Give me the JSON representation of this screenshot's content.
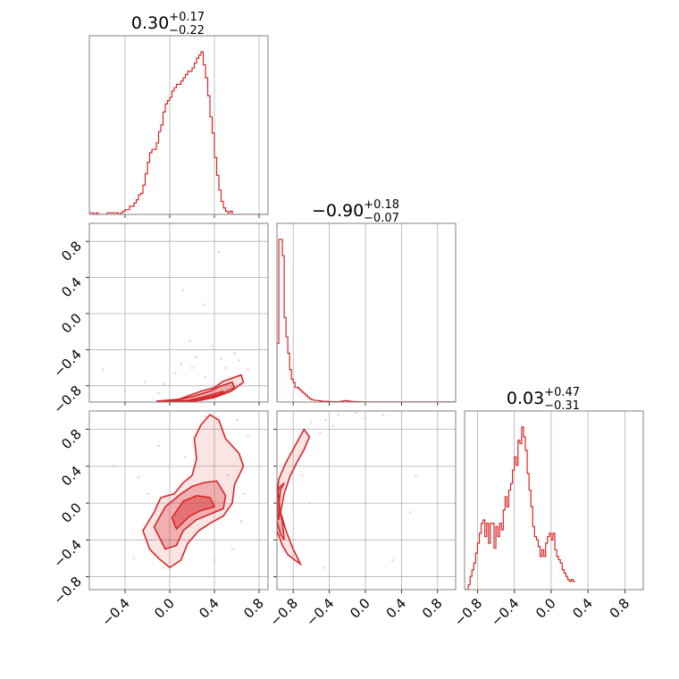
{
  "chart_data": {
    "type": "corner",
    "color": "#d62728",
    "parameters": [
      {
        "median": "0.30",
        "plus": "+0.17",
        "minus": "−0.22",
        "range": [
          -0.72,
          0.88
        ]
      },
      {
        "median": "−0.90",
        "plus": "+0.18",
        "minus": "−0.07",
        "range": [
          -0.98,
          1.0
        ]
      },
      {
        "median": "0.03",
        "plus": "+0.47",
        "minus": "−0.31",
        "range": [
          -0.94,
          1.0
        ]
      }
    ],
    "x_tick_values": [
      [
        -0.4,
        0.0,
        0.4,
        0.8
      ],
      [
        -0.8,
        -0.4,
        0.0,
        0.4,
        0.8
      ],
      [
        -0.8,
        -0.4,
        0.0,
        0.4,
        0.8
      ]
    ],
    "x_tick_labels": [
      [
        "−0.4",
        "0.0",
        "0.4",
        "0.8"
      ],
      [
        "−0.8",
        "−0.4",
        "0.0",
        "0.4",
        "0.8"
      ],
      [
        "−0.8",
        "−0.4",
        "0.0",
        "0.4",
        "0.8"
      ]
    ],
    "y_tick_values": [
      [],
      [
        -0.8,
        -0.4,
        0.0,
        0.4,
        0.8
      ],
      [
        -0.8,
        -0.4,
        0.0,
        0.4,
        0.8
      ]
    ],
    "y_tick_labels": [
      [],
      [
        "−0.8",
        "−0.4",
        "0.0",
        "0.4",
        "0.8"
      ],
      [
        "−0.8",
        "−0.4",
        "0.0",
        "0.4",
        "0.8"
      ]
    ],
    "histograms": [
      {
        "param": 0,
        "bin_start": -0.72,
        "bin_width": 0.02,
        "counts": [
          1,
          1,
          0,
          1,
          0,
          0,
          0,
          0,
          1,
          1,
          1,
          1,
          1,
          0,
          1,
          2,
          3,
          3,
          5,
          5,
          7,
          9,
          12,
          13,
          18,
          25,
          32,
          38,
          40,
          40,
          44,
          51,
          55,
          63,
          68,
          70,
          72,
          76,
          78,
          80,
          80,
          82,
          84,
          86,
          88,
          88,
          90,
          93,
          96,
          98,
          100,
          92,
          84,
          73,
          60,
          50,
          35,
          24,
          15,
          8,
          4,
          2,
          1,
          2,
          0,
          0,
          0,
          0,
          0,
          0,
          0,
          0,
          0,
          0,
          0,
          0,
          0,
          0,
          0,
          0
        ]
      },
      {
        "param": 1,
        "bin_start": -0.98,
        "bin_width": 0.02,
        "counts": [
          36,
          100,
          100,
          90,
          52,
          40,
          30,
          20,
          14,
          12,
          9,
          9,
          8,
          7,
          6,
          5,
          4,
          3,
          2,
          1.5,
          1.2,
          1,
          1,
          0.8,
          0.6,
          0.5,
          0.5,
          0.4,
          0.4,
          0.3,
          0.3,
          0.3,
          0.2,
          0.2,
          0.3,
          0.4,
          0.6,
          0.8,
          0.9,
          0.7,
          0.5,
          0.4,
          0.3,
          0.3,
          0.2,
          0.2,
          0.2,
          0.1,
          0.1,
          0.1,
          0.1,
          0.1,
          0.1,
          0.1,
          0.1,
          0.1,
          0.1,
          0.1,
          0.1,
          0.1,
          0.1,
          0.1,
          0.1,
          0.1,
          0.1,
          0.1,
          0.1,
          0.1,
          0.1,
          0.1,
          0.1,
          0.1,
          0.1,
          0.1,
          0.1,
          0.1,
          0.1,
          0.1,
          0.1,
          0.1,
          0.1,
          0.1,
          0.1,
          0.1,
          0.1,
          0.1,
          0.1,
          0.1,
          0.1,
          0.1,
          0.1,
          0.1,
          0.1,
          0.1,
          0.1,
          0.1,
          0.1,
          0.1,
          0.1
        ]
      },
      {
        "param": 2,
        "bin_start": -0.94,
        "bin_width": 0.02,
        "counts": [
          0,
          0,
          3,
          8,
          12,
          16,
          22,
          28,
          34,
          40,
          42,
          32,
          40,
          28,
          40,
          40,
          25,
          38,
          32,
          40,
          36,
          48,
          56,
          50,
          60,
          64,
          72,
          80,
          75,
          90,
          88,
          98,
          92,
          84,
          70,
          60,
          50,
          38,
          32,
          30,
          26,
          20,
          24,
          20,
          28,
          32,
          34,
          30,
          34,
          24,
          20,
          18,
          16,
          12,
          10,
          8,
          6,
          5,
          6,
          5
        ]
      }
    ],
    "contours": [
      {
        "x_param": 0,
        "y_param": 1,
        "levels": [
          [
            [
              -0.12,
              -0.97
            ],
            [
              0.08,
              -0.95
            ],
            [
              0.28,
              -0.86
            ],
            [
              0.4,
              -0.82
            ],
            [
              0.48,
              -0.75
            ],
            [
              0.64,
              -0.68
            ],
            [
              0.66,
              -0.76
            ],
            [
              0.55,
              -0.86
            ],
            [
              0.4,
              -0.93
            ],
            [
              0.22,
              -0.97
            ]
          ],
          [
            [
              0.02,
              -0.97
            ],
            [
              0.2,
              -0.92
            ],
            [
              0.36,
              -0.86
            ],
            [
              0.46,
              -0.8
            ],
            [
              0.56,
              -0.76
            ],
            [
              0.58,
              -0.82
            ],
            [
              0.44,
              -0.9
            ],
            [
              0.24,
              -0.96
            ]
          ],
          [
            [
              0.14,
              -0.97
            ],
            [
              0.28,
              -0.93
            ],
            [
              0.4,
              -0.89
            ],
            [
              0.48,
              -0.86
            ],
            [
              0.42,
              -0.92
            ],
            [
              0.28,
              -0.96
            ]
          ]
        ]
      },
      {
        "x_param": 0,
        "y_param": 2,
        "levels": [
          [
            [
              -0.24,
              -0.3
            ],
            [
              -0.14,
              -0.1
            ],
            [
              -0.08,
              0.06
            ],
            [
              0.04,
              0.1
            ],
            [
              0.12,
              0.22
            ],
            [
              0.2,
              0.3
            ],
            [
              0.24,
              0.48
            ],
            [
              0.22,
              0.7
            ],
            [
              0.28,
              0.85
            ],
            [
              0.36,
              0.96
            ],
            [
              0.44,
              0.9
            ],
            [
              0.5,
              0.7
            ],
            [
              0.62,
              0.54
            ],
            [
              0.66,
              0.4
            ],
            [
              0.58,
              0.2
            ],
            [
              0.56,
              0.0
            ],
            [
              0.48,
              -0.14
            ],
            [
              0.36,
              -0.22
            ],
            [
              0.26,
              -0.3
            ],
            [
              0.16,
              -0.44
            ],
            [
              0.1,
              -0.62
            ],
            [
              0.0,
              -0.7
            ],
            [
              -0.1,
              -0.6
            ],
            [
              -0.18,
              -0.5
            ]
          ],
          [
            [
              -0.14,
              -0.26
            ],
            [
              -0.04,
              -0.04
            ],
            [
              0.1,
              0.1
            ],
            [
              0.2,
              0.18
            ],
            [
              0.3,
              0.22
            ],
            [
              0.42,
              0.24
            ],
            [
              0.5,
              0.08
            ],
            [
              0.48,
              -0.06
            ],
            [
              0.36,
              -0.12
            ],
            [
              0.24,
              -0.18
            ],
            [
              0.12,
              -0.3
            ],
            [
              0.06,
              -0.46
            ],
            [
              -0.04,
              -0.5
            ]
          ],
          [
            [
              0.02,
              -0.16
            ],
            [
              0.12,
              0.02
            ],
            [
              0.24,
              0.08
            ],
            [
              0.36,
              0.06
            ],
            [
              0.4,
              -0.04
            ],
            [
              0.28,
              -0.08
            ],
            [
              0.18,
              -0.14
            ],
            [
              0.06,
              -0.28
            ]
          ]
        ]
      },
      {
        "x_param": 1,
        "y_param": 2,
        "levels": [
          [
            [
              -0.98,
              -0.3
            ],
            [
              -0.92,
              -0.46
            ],
            [
              -0.86,
              -0.56
            ],
            [
              -0.78,
              -0.62
            ],
            [
              -0.72,
              -0.66
            ],
            [
              -0.8,
              -0.5
            ],
            [
              -0.88,
              -0.3
            ],
            [
              -0.94,
              -0.1
            ],
            [
              -0.9,
              0.1
            ],
            [
              -0.84,
              0.28
            ],
            [
              -0.76,
              0.44
            ],
            [
              -0.68,
              0.58
            ],
            [
              -0.62,
              0.72
            ],
            [
              -0.68,
              0.8
            ],
            [
              -0.78,
              0.62
            ],
            [
              -0.88,
              0.44
            ],
            [
              -0.96,
              0.26
            ],
            [
              -0.98,
              0.06
            ]
          ],
          [
            [
              -0.98,
              -0.2
            ],
            [
              -0.94,
              -0.34
            ],
            [
              -0.9,
              -0.4
            ],
            [
              -0.92,
              -0.2
            ],
            [
              -0.96,
              -0.04
            ],
            [
              -0.94,
              0.14
            ],
            [
              -0.9,
              0.22
            ],
            [
              -0.96,
              0.16
            ],
            [
              -0.98,
              0.02
            ]
          ],
          [
            [
              -0.98,
              -0.1
            ],
            [
              -0.96,
              -0.18
            ],
            [
              -0.95,
              -0.04
            ],
            [
              -0.96,
              0.08
            ],
            [
              -0.98,
              0.06
            ]
          ]
        ]
      }
    ],
    "scatter": [
      {
        "x_param": 0,
        "y_param": 1,
        "points": [
          [
            -0.6,
            -0.62
          ],
          [
            -0.4,
            -0.86
          ],
          [
            -0.22,
            -0.76
          ],
          [
            -0.05,
            -0.78
          ],
          [
            0.1,
            -0.56
          ],
          [
            0.12,
            0.26
          ],
          [
            0.18,
            -0.3
          ],
          [
            0.24,
            -0.48
          ],
          [
            0.3,
            0.1
          ],
          [
            0.38,
            -0.36
          ],
          [
            0.44,
            0.68
          ],
          [
            0.5,
            -0.6
          ],
          [
            0.58,
            -0.44
          ],
          [
            0.62,
            -0.52
          ],
          [
            0.7,
            -0.62
          ],
          [
            0.32,
            -0.7
          ],
          [
            -0.1,
            -0.88
          ],
          [
            0.05,
            -0.66
          ],
          [
            0.46,
            -0.5
          ],
          [
            0.2,
            -0.6
          ]
        ]
      },
      {
        "x_param": 0,
        "y_param": 2,
        "points": [
          [
            -0.5,
            0.4
          ],
          [
            -0.32,
            -0.6
          ],
          [
            -0.2,
            0.1
          ],
          [
            -0.1,
            0.62
          ],
          [
            -0.28,
            0.28
          ],
          [
            0.56,
            -0.5
          ],
          [
            0.64,
            -0.2
          ],
          [
            0.7,
            0.72
          ],
          [
            0.4,
            -0.62
          ],
          [
            0.14,
            0.5
          ],
          [
            -0.06,
            -0.7
          ],
          [
            0.6,
            0.9
          ],
          [
            0.32,
            0.94
          ],
          [
            -0.16,
            -0.4
          ],
          [
            0.66,
            0.1
          ],
          [
            0.52,
            0.3
          ]
        ]
      },
      {
        "x_param": 1,
        "y_param": 2,
        "points": [
          [
            -0.6,
            0.88
          ],
          [
            -0.44,
            0.9
          ],
          [
            -0.3,
            0.96
          ],
          [
            -0.1,
            0.98
          ],
          [
            0.0,
            0.92
          ],
          [
            0.2,
            0.96
          ],
          [
            0.3,
            -0.62
          ],
          [
            0.56,
            0.3
          ],
          [
            0.5,
            -0.1
          ],
          [
            -0.46,
            -0.7
          ],
          [
            -0.62,
            0.0
          ],
          [
            -0.7,
            0.3
          ],
          [
            -0.5,
            0.76
          ],
          [
            -0.36,
            0.84
          ]
        ]
      }
    ]
  }
}
